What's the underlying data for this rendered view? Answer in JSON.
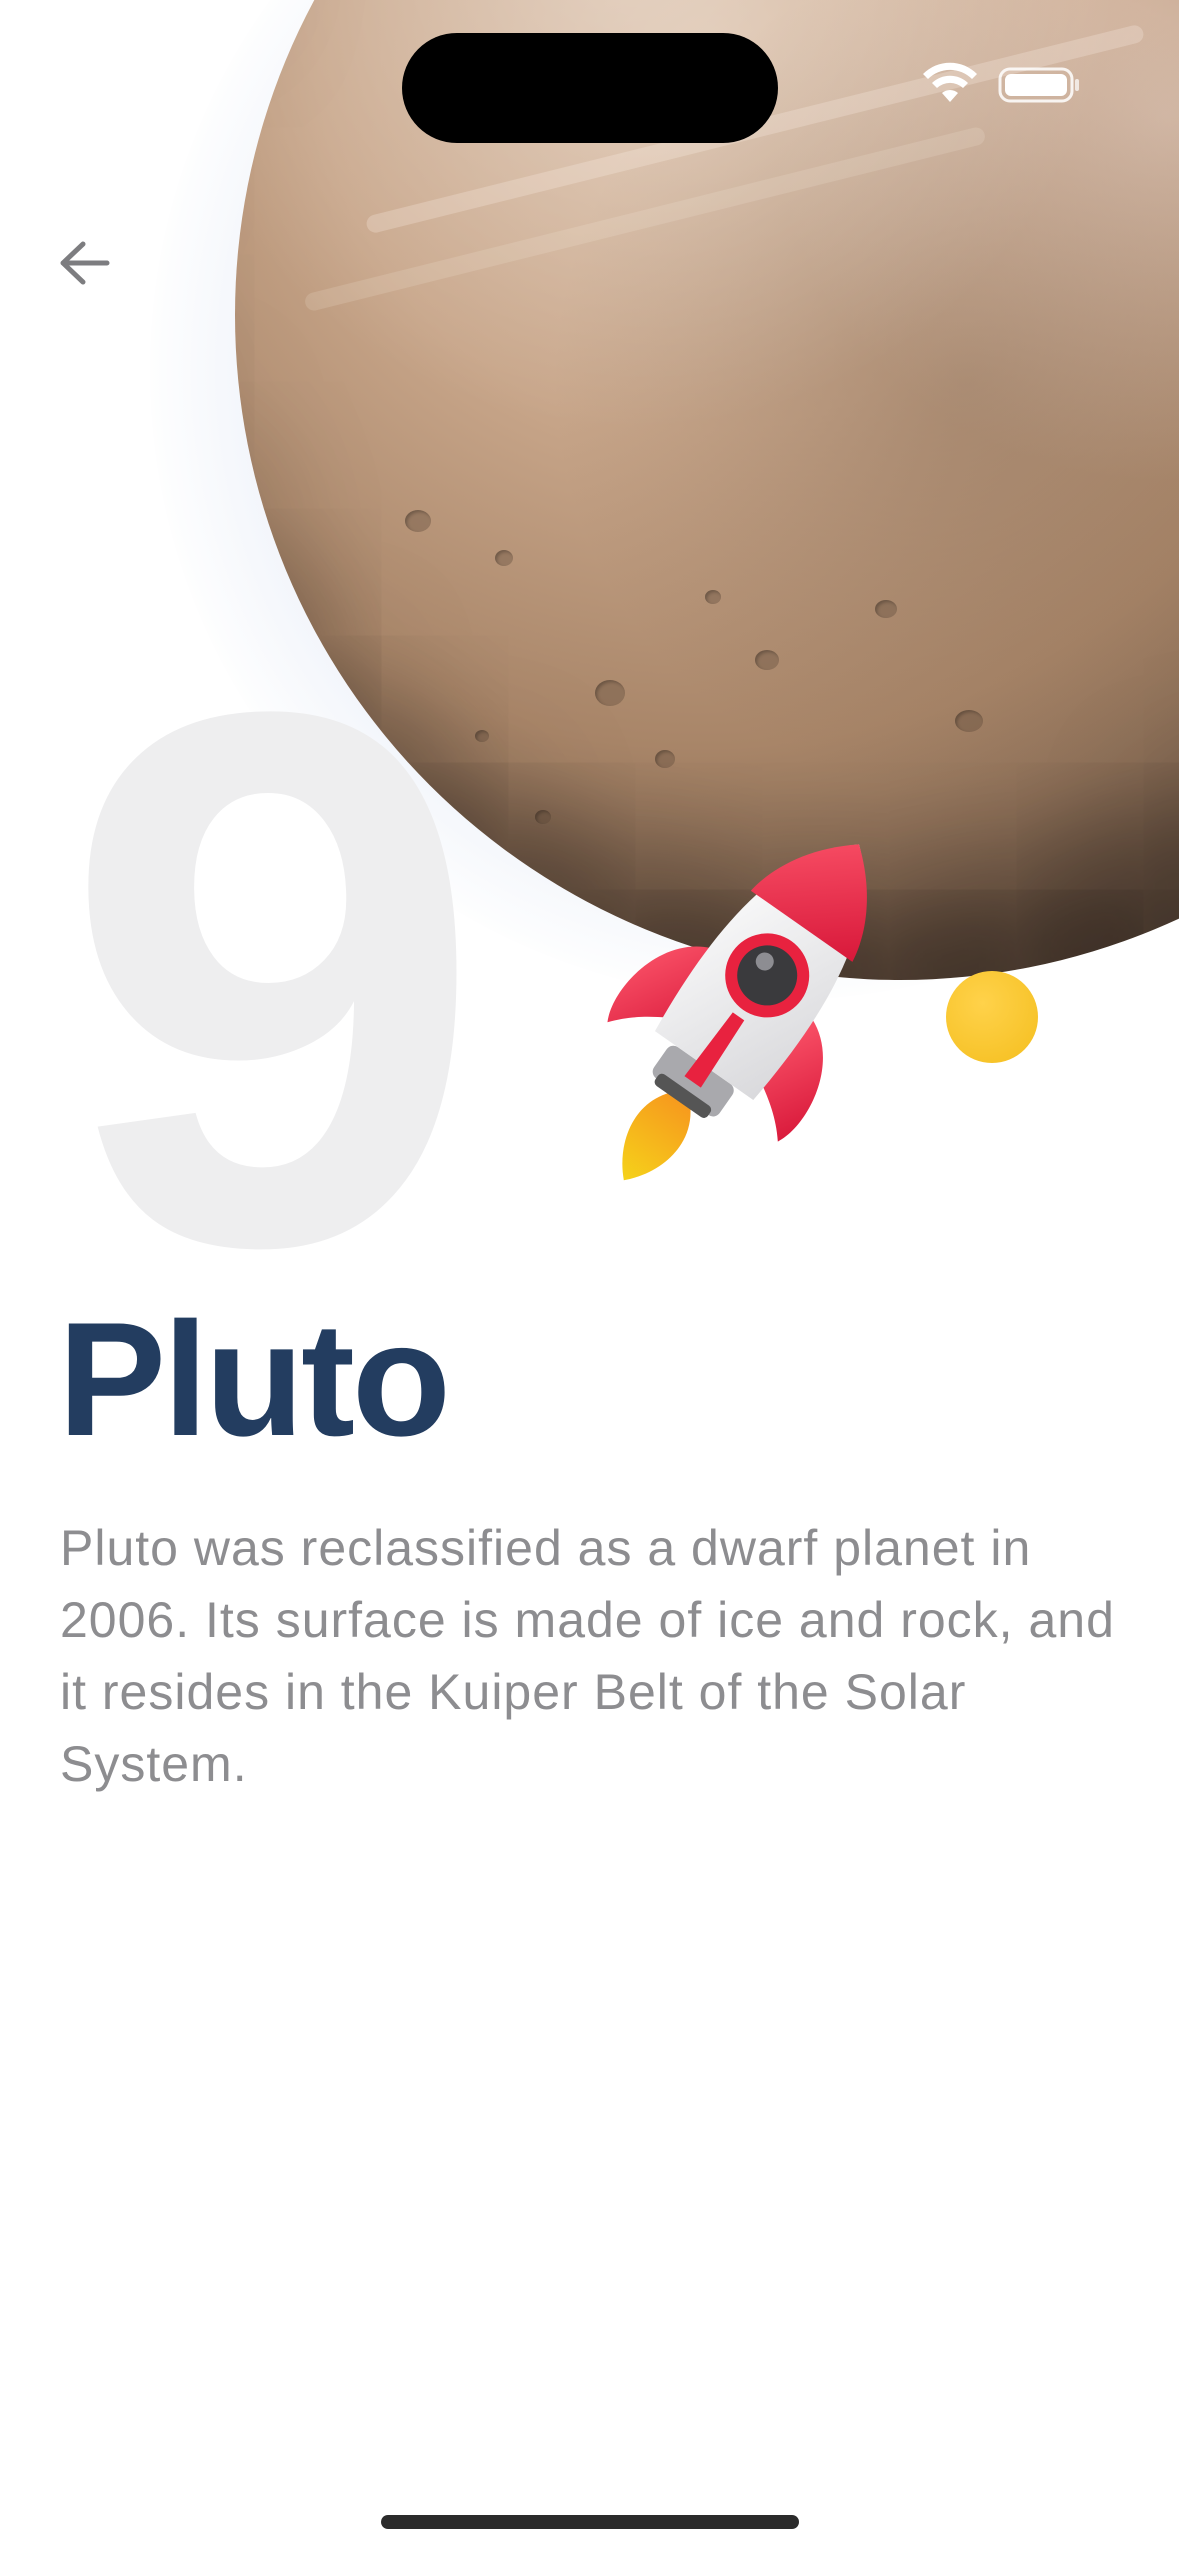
{
  "planet": {
    "index": "9",
    "name": "Pluto",
    "description": "Pluto was reclassified as a dwarf planet in 2006. Its surface is made of ice and rock, and it resides in the Kuiper Belt of the Solar System."
  },
  "icons": {
    "back": "back-arrow-icon",
    "wifi": "wifi-icon",
    "battery": "battery-icon",
    "rocket": "rocket-illustration"
  },
  "colors": {
    "title": "#233d60",
    "body_text": "#8d8d90",
    "big_number": "#eeeeef",
    "accent_dot": "#f4be1e"
  }
}
